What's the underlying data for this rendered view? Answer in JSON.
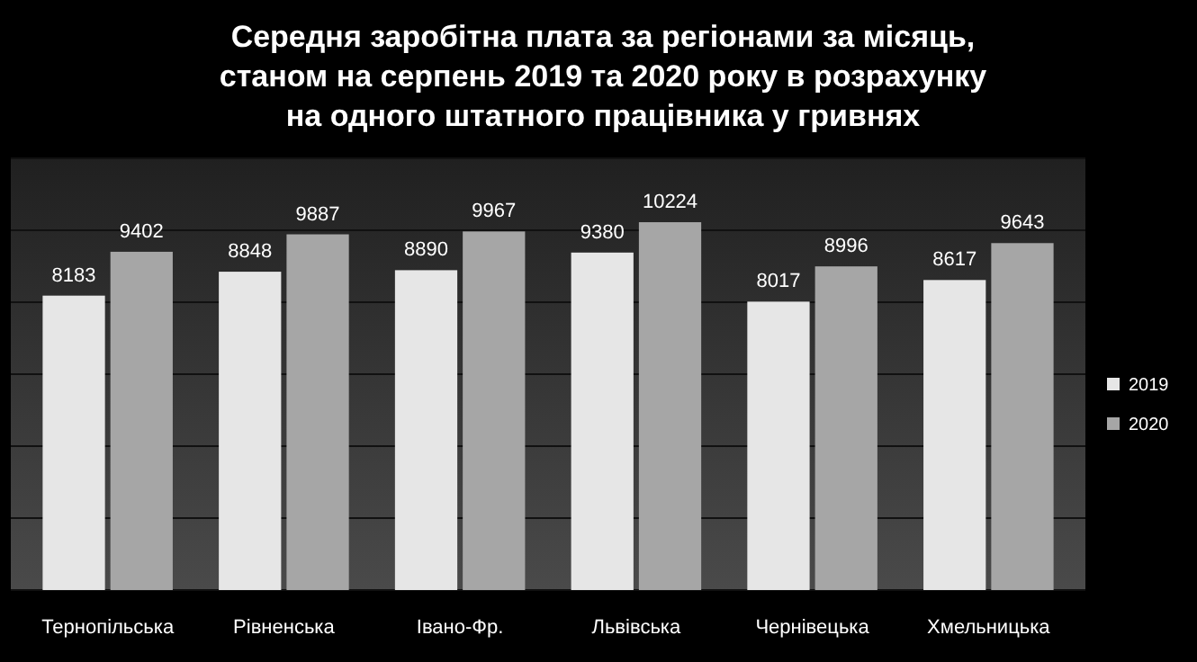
{
  "chart_data": {
    "type": "bar",
    "title": "Середня заробітна плата за регіонами за місяць, станом на серпень 2019 та 2020 року в розрахунку на одного штатного працівника у гривнях",
    "categories": [
      "Тернопільська",
      "Рівненська",
      "Івано-Фр.",
      "Львівська",
      "Чернівецька",
      "Хмельницька"
    ],
    "series": [
      {
        "name": "2019",
        "color": "#e6e6e6",
        "values": [
          8183,
          8848,
          8890,
          9380,
          8017,
          8617
        ]
      },
      {
        "name": "2020",
        "color": "#a6a6a6",
        "values": [
          9402,
          9887,
          9967,
          10224,
          8996,
          9643
        ]
      }
    ],
    "ylim": [
      0,
      12000
    ],
    "yticks": [
      {
        "value": 0,
        "label": null
      },
      {
        "value": 2000,
        "label": null
      },
      {
        "value": 4000,
        "label": null
      },
      {
        "value": 6000,
        "label": null
      },
      {
        "value": 8000,
        "label": null
      },
      {
        "value": 10000,
        "label": null
      },
      {
        "value": 12000,
        "label": null
      }
    ],
    "grid": "y",
    "data_labels": true,
    "legend": "right",
    "tick_labels": "x"
  }
}
